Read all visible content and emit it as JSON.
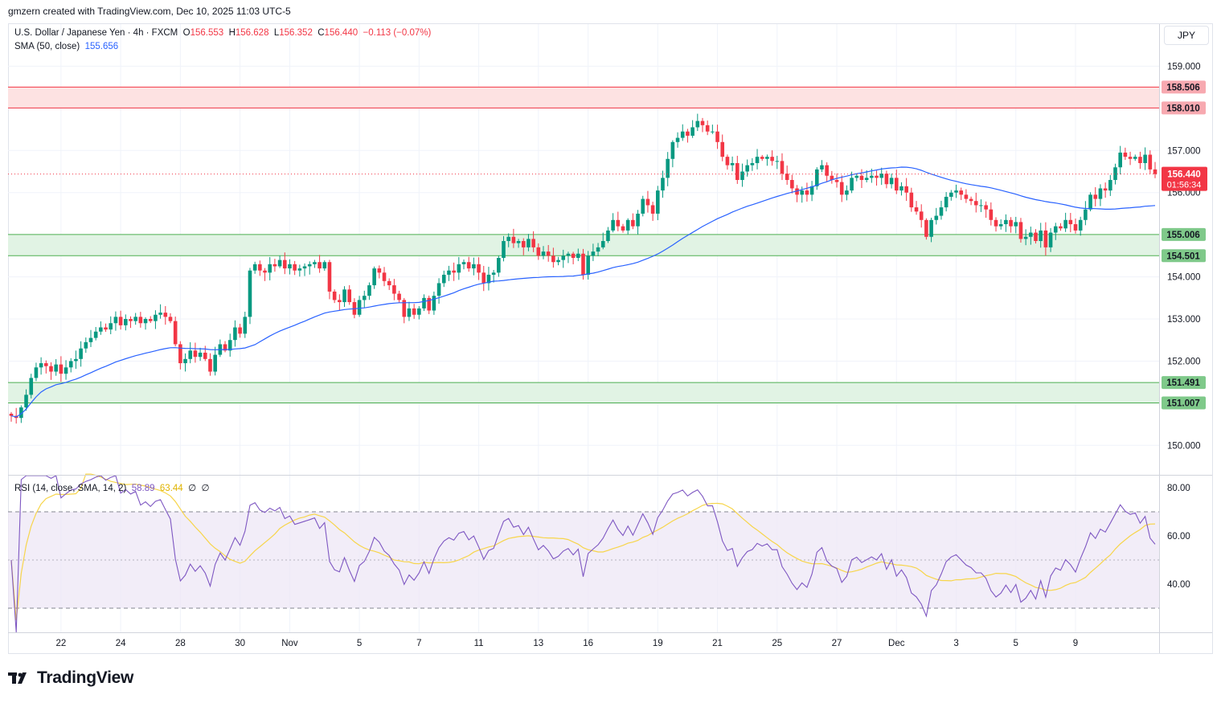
{
  "header": {
    "attribution": "gmzern created with TradingView.com, Dec 10, 2025 11:03 UTC-5"
  },
  "legend": {
    "symbol": "U.S. Dollar / Japanese Yen · 4h · FXCM",
    "o_label": "O",
    "o_value": "156.553",
    "h_label": "H",
    "h_value": "156.628",
    "l_label": "L",
    "l_value": "156.352",
    "c_label": "C",
    "c_value": "156.440",
    "change": "−0.113 (−0.07%)",
    "sma_label": "SMA (50, close)",
    "sma_value": "155.656",
    "rsi_label": "RSI (14, close, SMA, 14, 2)",
    "rsi_value": "58.89",
    "rsi_ma_value": "63.44",
    "rsi_extra1": "∅",
    "rsi_extra2": "∅"
  },
  "currency_button": "JPY",
  "brand": {
    "name": "TradingView"
  },
  "colors": {
    "up": "#089981",
    "down": "#f23645",
    "sma": "#2962ff",
    "rsi": "#7e57c2",
    "rsi_ma": "#f7d54a",
    "resistance_zone": "#fde2e2",
    "support_zone": "#e1f3e4"
  },
  "chart_data": {
    "type": "candlestick",
    "symbol": "USDJPY",
    "timeframe": "4h",
    "price_axis": {
      "ylim": [
        149.3,
        160.0
      ],
      "ticks": [
        "159.000",
        "158.000",
        "157.000",
        "156.000",
        "155.000",
        "154.000",
        "153.000",
        "152.000",
        "151.000",
        "150.000"
      ]
    },
    "x_ticks": [
      {
        "label": "22",
        "bar": 10
      },
      {
        "label": "24",
        "bar": 22
      },
      {
        "label": "28",
        "bar": 34
      },
      {
        "label": "30",
        "bar": 46
      },
      {
        "label": "Nov",
        "bar": 56
      },
      {
        "label": "5",
        "bar": 70
      },
      {
        "label": "7",
        "bar": 82
      },
      {
        "label": "11",
        "bar": 94
      },
      {
        "label": "13",
        "bar": 106
      },
      {
        "label": "16",
        "bar": 116
      },
      {
        "label": "19",
        "bar": 130
      },
      {
        "label": "21",
        "bar": 142
      },
      {
        "label": "25",
        "bar": 154
      },
      {
        "label": "27",
        "bar": 166
      },
      {
        "label": "Dec",
        "bar": 178
      },
      {
        "label": "3",
        "bar": 190
      },
      {
        "label": "5",
        "bar": 202
      },
      {
        "label": "9",
        "bar": 214
      }
    ],
    "zones": [
      {
        "kind": "resistance",
        "top": 158.506,
        "bottom": 158.01,
        "top_label": "158.506",
        "bottom_label": "158.010"
      },
      {
        "kind": "support",
        "top": 155.006,
        "bottom": 154.501,
        "top_label": "155.006",
        "bottom_label": "154.501"
      },
      {
        "kind": "support",
        "top": 151.491,
        "bottom": 151.007,
        "top_label": "151.491",
        "bottom_label": "151.007"
      }
    ],
    "last_price": {
      "value": 156.44,
      "label": "156.440",
      "countdown": "01:56:34"
    },
    "close": [
      150.7,
      150.65,
      150.9,
      151.2,
      151.6,
      151.85,
      151.95,
      151.88,
      151.75,
      151.92,
      151.7,
      151.85,
      152.0,
      152.05,
      152.3,
      152.45,
      152.55,
      152.7,
      152.8,
      152.75,
      152.9,
      153.05,
      152.85,
      153.0,
      152.95,
      153.05,
      152.9,
      153.0,
      152.95,
      153.1,
      153.15,
      153.05,
      152.95,
      152.4,
      151.95,
      152.05,
      152.25,
      152.1,
      152.2,
      152.05,
      151.75,
      152.15,
      152.4,
      152.25,
      152.5,
      152.8,
      152.65,
      153.05,
      154.15,
      154.3,
      154.15,
      154.1,
      154.3,
      154.25,
      154.4,
      154.2,
      154.3,
      154.15,
      154.2,
      154.25,
      154.3,
      154.35,
      154.2,
      154.35,
      153.65,
      153.45,
      153.4,
      153.7,
      153.4,
      153.1,
      153.45,
      153.55,
      153.8,
      154.2,
      154.1,
      153.9,
      153.8,
      153.6,
      153.45,
      153.05,
      153.25,
      153.1,
      153.25,
      153.5,
      153.2,
      153.55,
      153.85,
      154.05,
      154.15,
      154.1,
      154.3,
      154.35,
      154.2,
      154.3,
      154.1,
      153.85,
      154.05,
      154.1,
      154.45,
      154.85,
      154.95,
      154.8,
      154.85,
      154.7,
      154.9,
      154.7,
      154.5,
      154.6,
      154.5,
      154.35,
      154.4,
      154.5,
      154.55,
      154.45,
      154.55,
      154.05,
      154.5,
      154.6,
      154.7,
      154.85,
      155.1,
      155.35,
      155.2,
      155.1,
      155.35,
      155.2,
      155.5,
      155.85,
      155.7,
      155.5,
      156.05,
      156.35,
      156.8,
      157.2,
      157.3,
      157.45,
      157.35,
      157.55,
      157.7,
      157.6,
      157.45,
      157.45,
      157.2,
      156.85,
      156.65,
      156.7,
      156.3,
      156.5,
      156.65,
      156.7,
      156.85,
      156.8,
      156.85,
      156.75,
      156.75,
      156.45,
      156.3,
      156.1,
      155.95,
      156.05,
      155.95,
      156.15,
      156.55,
      156.65,
      156.4,
      156.3,
      156.25,
      155.95,
      156.05,
      156.35,
      156.4,
      156.3,
      156.35,
      156.4,
      156.35,
      156.45,
      156.2,
      156.35,
      156.05,
      156.15,
      156.0,
      155.65,
      155.55,
      155.35,
      154.95,
      155.35,
      155.45,
      155.65,
      155.9,
      156.0,
      156.05,
      155.95,
      155.85,
      155.8,
      155.7,
      155.7,
      155.6,
      155.35,
      155.2,
      155.25,
      155.35,
      155.2,
      155.3,
      154.9,
      154.95,
      155.05,
      154.85,
      155.1,
      154.7,
      155.05,
      155.2,
      155.15,
      155.35,
      155.25,
      155.1,
      155.35,
      155.6,
      155.95,
      155.85,
      156.1,
      156.05,
      156.3,
      156.6,
      156.95,
      156.85,
      156.8,
      156.85,
      156.7,
      156.9,
      156.55,
      156.44
    ],
    "rsi": {
      "ylim": [
        20,
        85
      ],
      "ticks": [
        "80.00",
        "60.00",
        "40.00"
      ],
      "levels": [
        70,
        50,
        30
      ],
      "last": 58.89,
      "ma_last": 63.44
    }
  }
}
